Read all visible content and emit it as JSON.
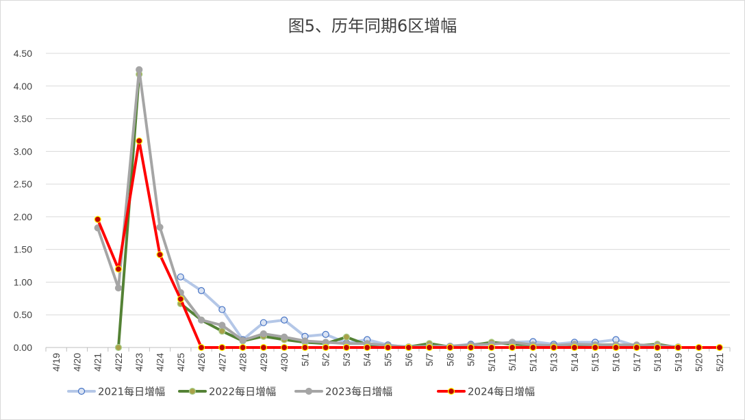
{
  "chart_data": {
    "type": "line",
    "title": "图5、历年同期6区增幅",
    "xlabel": "",
    "ylabel": "",
    "ylim": [
      0,
      4.5
    ],
    "yticks": [
      "0.00",
      "0.50",
      "1.00",
      "1.50",
      "2.00",
      "2.50",
      "3.00",
      "3.50",
      "4.00",
      "4.50"
    ],
    "categories": [
      "4/19",
      "4/20",
      "4/21",
      "4/22",
      "4/23",
      "4/24",
      "4/25",
      "4/26",
      "4/27",
      "4/28",
      "4/29",
      "4/30",
      "5/1",
      "5/2",
      "5/3",
      "5/4",
      "5/5",
      "5/6",
      "5/7",
      "5/8",
      "5/9",
      "5/10",
      "5/11",
      "5/12",
      "5/13",
      "5/14",
      "5/15",
      "5/16",
      "5/17",
      "5/18",
      "5/19",
      "5/20",
      "5/21"
    ],
    "grid": true,
    "legend_position": "bottom",
    "series": [
      {
        "name": "2021每日增幅",
        "line_color": "#b4c7e7",
        "marker_fill": "#dae3f3",
        "marker_stroke": "#4472c4",
        "values": [
          null,
          null,
          null,
          null,
          null,
          null,
          1.08,
          0.87,
          0.58,
          0.12,
          0.38,
          0.42,
          0.17,
          0.2,
          0.07,
          0.12,
          0.04,
          0.0,
          0.03,
          0.02,
          0.05,
          0.06,
          0.08,
          0.09,
          0.05,
          0.08,
          0.08,
          0.12,
          0.02,
          null,
          null,
          null,
          null
        ]
      },
      {
        "name": "2022每日增幅",
        "line_color": "#548235",
        "marker_fill": "#a9a24a",
        "marker_stroke": "#a9d18e",
        "values": [
          null,
          null,
          null,
          0.0,
          4.18,
          null,
          0.67,
          0.42,
          0.25,
          0.1,
          0.17,
          0.12,
          0.08,
          0.06,
          0.16,
          0.04,
          0.02,
          0.01,
          0.06,
          0.01,
          0.03,
          0.08,
          0.05,
          0.04,
          0.02,
          0.03,
          0.04,
          0.04,
          0.03,
          0.05,
          0.0,
          null,
          null
        ]
      },
      {
        "name": "2023每日增幅",
        "line_color": "#a5a5a5",
        "marker_fill": "#a5a5a5",
        "marker_stroke": "#a5a5a5",
        "values": [
          null,
          null,
          1.83,
          0.91,
          4.25,
          1.84,
          0.84,
          0.42,
          0.34,
          0.11,
          0.21,
          0.16,
          0.1,
          0.08,
          0.06,
          0.06,
          0.03,
          0.01,
          0.02,
          0.02,
          0.04,
          0.05,
          0.08,
          0.04,
          0.03,
          0.05,
          0.04,
          0.04,
          0.04,
          0.03,
          0.01,
          null,
          null
        ]
      },
      {
        "name": "2024每日增幅",
        "line_color": "#ff0000",
        "marker_fill": "#c00000",
        "marker_stroke": "#ffff00",
        "values": [
          null,
          null,
          1.96,
          1.2,
          3.16,
          1.42,
          0.74,
          0.0,
          0.0,
          0.0,
          0.0,
          0.0,
          0.0,
          0.0,
          0.0,
          0.0,
          0.0,
          0.0,
          0.0,
          0.0,
          0.0,
          0.0,
          0.0,
          0.0,
          0.0,
          0.0,
          0.0,
          0.0,
          0.0,
          0.0,
          0.0,
          0.0,
          0.0
        ]
      }
    ]
  }
}
